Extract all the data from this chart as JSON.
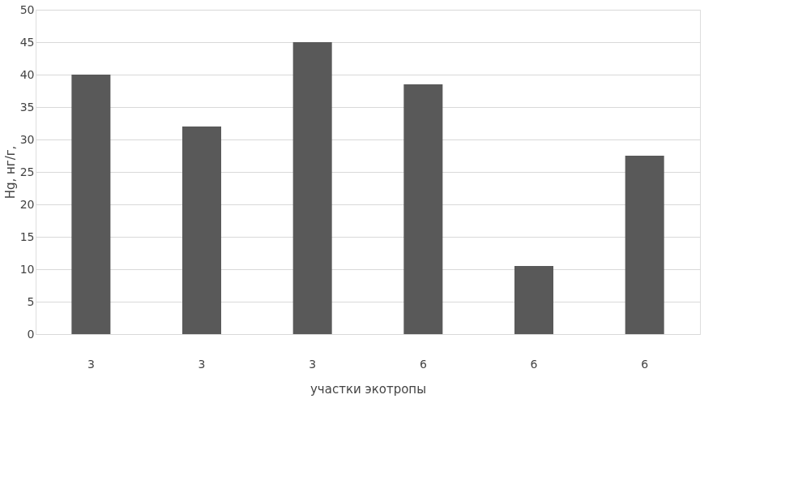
{
  "chart_data": {
    "type": "bar",
    "xlabel": "участки экотропы",
    "ylabel": "Hg, нг/г,",
    "categories": [
      "3",
      "3",
      "3",
      "6",
      "6",
      "6"
    ],
    "values": [
      40,
      32,
      45,
      38.5,
      10.5,
      27.5
    ],
    "color": "#595959",
    "ylim": [
      0,
      50
    ],
    "yticks": [
      0,
      5,
      10,
      15,
      20,
      25,
      30,
      35,
      40,
      45,
      50
    ],
    "grid": "y"
  }
}
